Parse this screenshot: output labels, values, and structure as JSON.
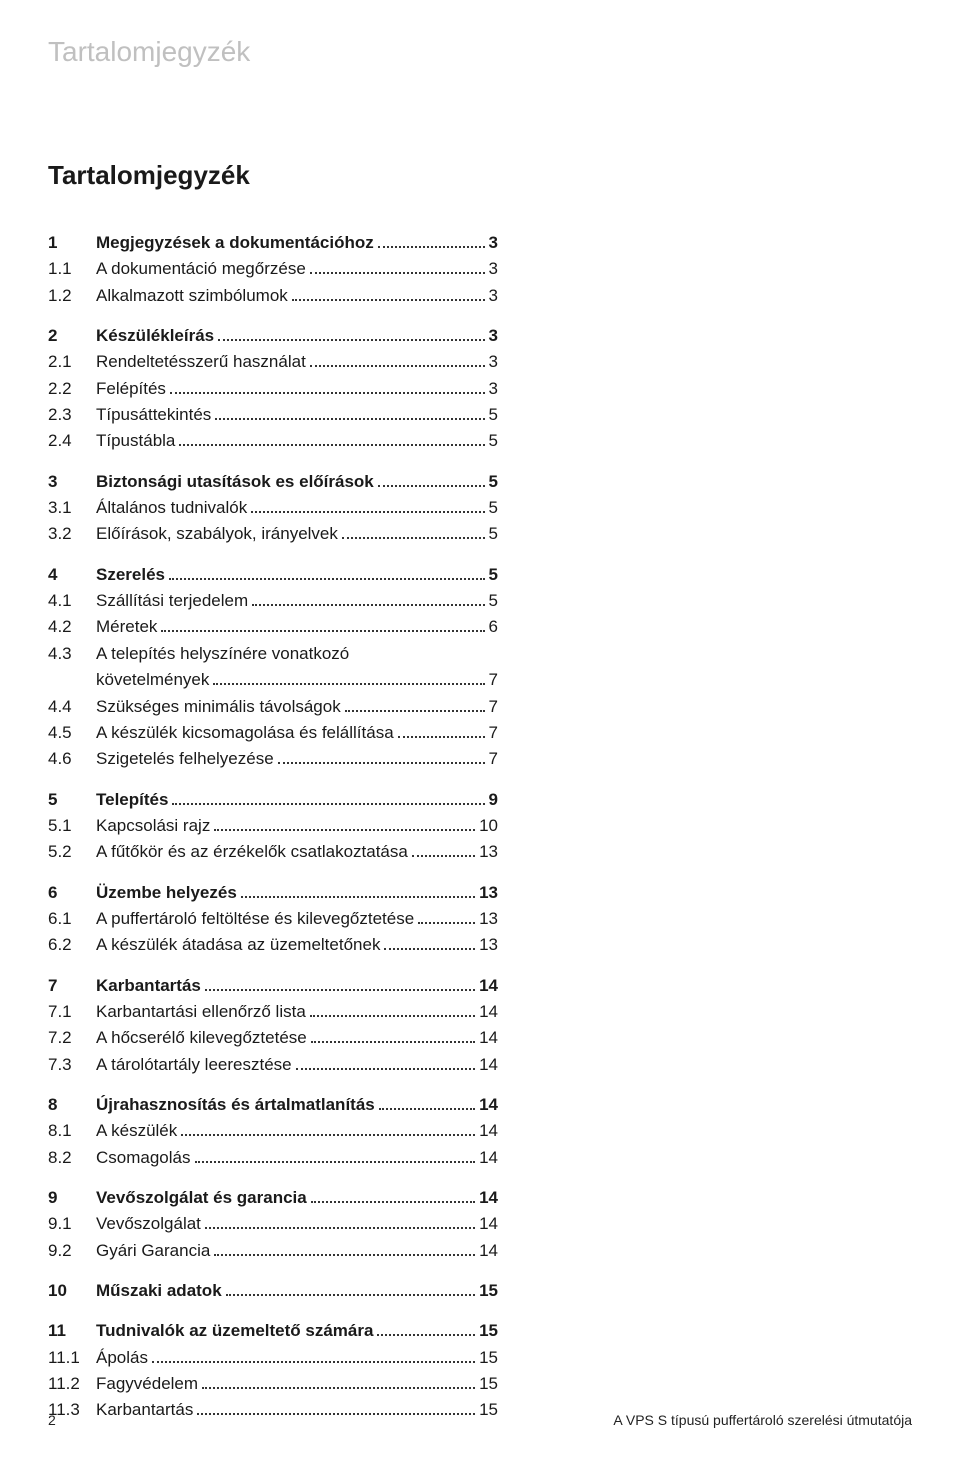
{
  "header_title": "Tartalomjegyzék",
  "toc_title": "Tartalomjegyzék",
  "footer": {
    "page_number": "2",
    "doc_title": "A VPS S típusú puffertároló szerelési útmutatója"
  },
  "toc": [
    {
      "group": [
        {
          "num": "1",
          "label": "Megjegyzések a dokumentációhoz",
          "page": "3",
          "section": true
        },
        {
          "num": "1.1",
          "label": "A dokumentáció megőrzése",
          "page": "3"
        },
        {
          "num": "1.2",
          "label": "Alkalmazott szimbólumok",
          "page": "3"
        }
      ]
    },
    {
      "group": [
        {
          "num": "2",
          "label": "Készülékleírás",
          "page": "3",
          "section": true
        },
        {
          "num": "2.1",
          "label": "Rendeltetésszerű használat",
          "page": "3"
        },
        {
          "num": "2.2",
          "label": "Felépítés",
          "page": "3"
        },
        {
          "num": "2.3",
          "label": "Típusáttekintés",
          "page": "5"
        },
        {
          "num": "2.4",
          "label": "Típustábla",
          "page": "5"
        }
      ]
    },
    {
      "group": [
        {
          "num": "3",
          "label": "Biztonsági utasítások es előírások",
          "page": "5",
          "section": true
        },
        {
          "num": "3.1",
          "label": "Általános tudnivalók",
          "page": "5"
        },
        {
          "num": "3.2",
          "label": "Előírások, szabályok, irányelvek",
          "page": "5"
        }
      ]
    },
    {
      "group": [
        {
          "num": "4",
          "label": "Szerelés",
          "page": "5",
          "section": true
        },
        {
          "num": "4.1",
          "label": "Szállítási terjedelem",
          "page": "5"
        },
        {
          "num": "4.2",
          "label": "Méretek",
          "page": "6"
        },
        {
          "num": "4.3",
          "label_line1": "A telepítés helyszínére vonatkozó",
          "label_line2": "követelmények",
          "page": "7",
          "multiline": true
        },
        {
          "num": "4.4",
          "label": "Szükséges minimális távolságok",
          "page": "7"
        },
        {
          "num": "4.5",
          "label": "A készülék kicsomagolása és felállítása",
          "page": "7"
        },
        {
          "num": "4.6",
          "label": "Szigetelés felhelyezése",
          "page": "7"
        }
      ]
    },
    {
      "group": [
        {
          "num": "5",
          "label": "Telepítés",
          "page": "9",
          "section": true
        },
        {
          "num": "5.1",
          "label": "Kapcsolási rajz",
          "page": "10"
        },
        {
          "num": "5.2",
          "label": "A fűtőkör és az érzékelők csatlakoztatása",
          "page": "13"
        }
      ]
    },
    {
      "group": [
        {
          "num": "6",
          "label": "Üzembe helyezés",
          "page": "13",
          "section": true
        },
        {
          "num": "6.1",
          "label": "A puffertároló feltöltése és kilevegőztetése",
          "page": "13"
        },
        {
          "num": "6.2",
          "label": "A készülék átadása az üzemeltetőnek",
          "page": "13"
        }
      ]
    },
    {
      "group": [
        {
          "num": "7",
          "label": "Karbantartás",
          "page": "14",
          "section": true
        },
        {
          "num": "7.1",
          "label": "Karbantartási ellenőrző lista",
          "page": "14"
        },
        {
          "num": "7.2",
          "label": "A hőcserélő kilevegőztetése",
          "page": "14"
        },
        {
          "num": "7.3",
          "label": "A tárolótartály leeresztése",
          "page": "14"
        }
      ]
    },
    {
      "group": [
        {
          "num": "8",
          "label": "Újrahasznosítás és ártalmatlanítás",
          "page": "14",
          "section": true
        },
        {
          "num": "8.1",
          "label": "A készülék",
          "page": "14"
        },
        {
          "num": "8.2",
          "label": "Csomagolás",
          "page": "14"
        }
      ]
    },
    {
      "group": [
        {
          "num": "9",
          "label": "Vevőszolgálat és garancia",
          "page": "14",
          "section": true
        },
        {
          "num": "9.1",
          "label": "Vevőszolgálat",
          "page": "14"
        },
        {
          "num": "9.2",
          "label": "Gyári Garancia",
          "page": "14"
        }
      ]
    },
    {
      "group": [
        {
          "num": "10",
          "label": "Műszaki adatok",
          "page": "15",
          "section": true
        }
      ]
    },
    {
      "group": [
        {
          "num": "11",
          "label": "Tudnivalók az üzemeltető számára",
          "page": "15",
          "section": true
        },
        {
          "num": "11.1",
          "label": "Ápolás",
          "page": "15"
        },
        {
          "num": "11.2",
          "label": "Fagyvédelem",
          "page": "15"
        },
        {
          "num": "11.3",
          "label": "Karbantartás",
          "page": "15"
        }
      ]
    }
  ]
}
